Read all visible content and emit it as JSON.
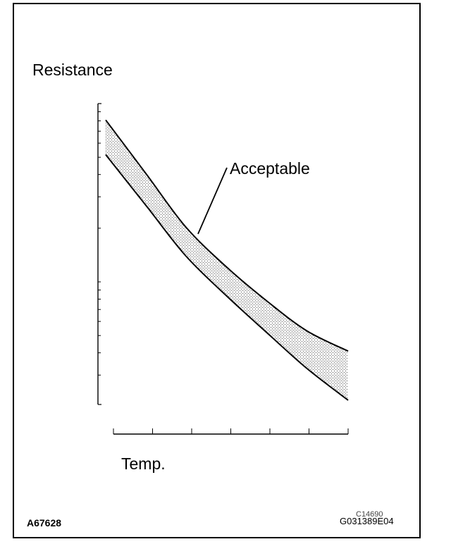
{
  "chart_data": {
    "type": "area",
    "ylabel": "Resistance",
    "xlabel": "Temp.",
    "y_scale": "log",
    "x_ticks": 7,
    "annotation": "Acceptable",
    "series": [
      {
        "name": "upper",
        "x": [
          0.0,
          0.17,
          0.33,
          0.5,
          0.67,
          0.83,
          1.0
        ],
        "y": [
          0.97,
          0.78,
          0.6,
          0.46,
          0.34,
          0.24,
          0.17
        ]
      },
      {
        "name": "lower",
        "x": [
          0.0,
          0.17,
          0.33,
          0.5,
          0.67,
          0.83,
          1.0
        ],
        "y": [
          0.85,
          0.67,
          0.5,
          0.36,
          0.23,
          0.11,
          0.0
        ]
      }
    ],
    "grid": false,
    "legend": "none"
  },
  "figure_code_left": "A67628",
  "figure_code_right": "G031389E04",
  "figure_code_right_ghost": "C14690",
  "colors": {
    "line": "#000000",
    "band_fill": "#c8c8c8"
  }
}
